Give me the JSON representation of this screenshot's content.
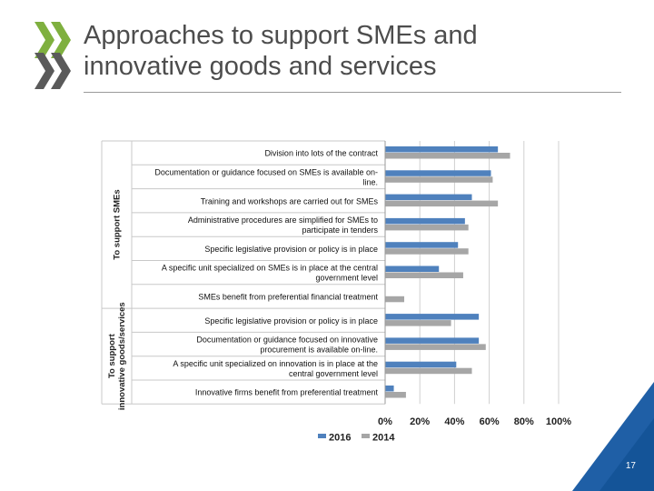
{
  "slide": {
    "title_line1": "Approaches to support SMEs and",
    "title_line2": "innovative goods and services",
    "page_number": "17"
  },
  "colors": {
    "series_2016": "#4f81bd",
    "series_2014": "#a6a6a6",
    "logo_green": "#7fb03f",
    "logo_gray": "#5a5a5a",
    "corner_blue": "#1f5fa6",
    "corner_blue_dark": "#0b4b8c"
  },
  "icons": {
    "logo": "oecd-chevron-logo"
  },
  "chart_data": {
    "type": "bar",
    "orientation": "horizontal",
    "groups": [
      {
        "label": "To support SMEs",
        "start": 0,
        "end": 6
      },
      {
        "label": "To support innovative goods/services",
        "start": 7,
        "end": 10
      }
    ],
    "categories": [
      "Division into lots of the contract",
      "Documentation or guidance focused on SMEs is available on-line.",
      "Training and workshops are carried out for SMEs",
      "Administrative procedures are simplified for SMEs to participate in tenders",
      "Specific legislative provision or policy is in place",
      "A specific unit specialized on SMEs is in place at the central government level",
      "SMEs benefit from preferential financial treatment",
      "Specific legislative provision or policy is in place",
      "Documentation or guidance focused on innovative procurement is available on-line.",
      "A specific unit specialized on innovation is in place at the central government level",
      "Innovative firms benefit from preferential treatment"
    ],
    "category_lines": [
      [
        "Division into lots of the contract"
      ],
      [
        "Documentation or guidance focused on SMEs is available on-",
        "line."
      ],
      [
        "Training and workshops are carried out for SMEs"
      ],
      [
        "Administrative procedures are simplified for SMEs to",
        "participate in tenders"
      ],
      [
        "Specific legislative provision or policy is in place"
      ],
      [
        "A specific unit specialized on SMEs is in place at the central",
        "government level"
      ],
      [
        "SMEs benefit from preferential financial treatment"
      ],
      [
        "Specific legislative provision or policy is in place"
      ],
      [
        "Documentation or guidance focused on innovative",
        "procurement is available on-line."
      ],
      [
        "A specific unit specialized on innovation is in place at the",
        "central government level"
      ],
      [
        "Innovative firms benefit from preferential treatment"
      ]
    ],
    "series": [
      {
        "name": "2016",
        "values": [
          65,
          61,
          50,
          46,
          42,
          31,
          null,
          54,
          54,
          41,
          5
        ]
      },
      {
        "name": "2014",
        "values": [
          72,
          62,
          65,
          48,
          48,
          45,
          11,
          38,
          58,
          50,
          12
        ]
      }
    ],
    "xlim": [
      0,
      100
    ],
    "xticks": [
      "0%",
      "20%",
      "40%",
      "60%",
      "80%",
      "100%"
    ],
    "xtick_values": [
      0,
      20,
      40,
      60,
      80,
      100
    ],
    "grid": true,
    "legend_position": "bottom"
  }
}
